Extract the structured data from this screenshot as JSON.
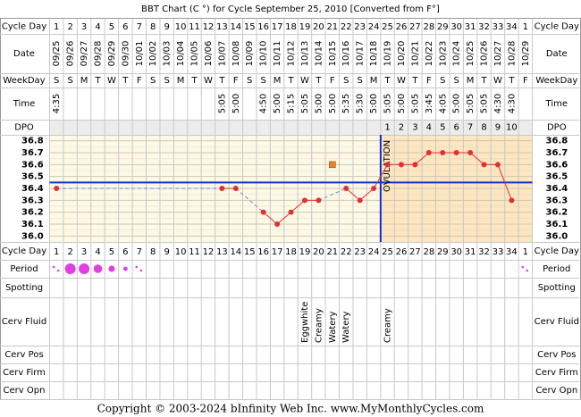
{
  "title": "BBT Chart (C °) for Cycle September 25, 2010  [Converted from F°]",
  "row_labels": {
    "cycle_day": "Cycle Day",
    "date": "Date",
    "weekday": "WeekDay",
    "time": "Time",
    "dpo": "DPO",
    "period": "Period",
    "spotting": "Spotting",
    "cerv_fluid": "Cerv Fluid",
    "cerv_pos": "Cerv Pos",
    "cerv_firm": "Cerv Firm",
    "cerv_opn": "Cerv Opn"
  },
  "cycle_days": [
    1,
    2,
    3,
    4,
    5,
    6,
    7,
    8,
    9,
    10,
    11,
    12,
    13,
    14,
    15,
    16,
    17,
    18,
    19,
    20,
    21,
    22,
    23,
    24,
    25,
    26,
    27,
    28,
    29,
    30,
    31,
    32,
    33,
    34,
    1
  ],
  "dates": [
    "09/25",
    "09/26",
    "09/27",
    "09/28",
    "09/29",
    "09/30",
    "10/01",
    "10/02",
    "10/03",
    "10/04",
    "10/05",
    "10/06",
    "10/07",
    "10/08",
    "10/09",
    "10/10",
    "10/11",
    "10/12",
    "10/13",
    "10/14",
    "10/15",
    "10/16",
    "10/17",
    "10/18",
    "10/19",
    "10/20",
    "10/21",
    "10/22",
    "10/23",
    "10/24",
    "10/25",
    "10/26",
    "10/27",
    "10/28",
    "10/29"
  ],
  "weekdays": [
    "S",
    "S",
    "M",
    "T",
    "W",
    "T",
    "F",
    "S",
    "S",
    "M",
    "T",
    "W",
    "T",
    "F",
    "S",
    "S",
    "M",
    "T",
    "W",
    "T",
    "F",
    "S",
    "S",
    "M",
    "T",
    "W",
    "T",
    "F",
    "S",
    "S",
    "M",
    "T",
    "W",
    "T",
    "F"
  ],
  "times": [
    "4:35",
    null,
    null,
    null,
    null,
    null,
    null,
    null,
    null,
    null,
    null,
    null,
    "5:05",
    "5:00",
    null,
    "4:50",
    "5:00",
    "5:15",
    "5:05",
    "5:00",
    "5:00",
    "5:35",
    "5:30",
    "5:00",
    "5:05",
    "5:00",
    "5:05",
    "3:45",
    "4:05",
    "5:00",
    "5:05",
    "5:05",
    "4:30",
    "4:30",
    null
  ],
  "dpo": [
    null,
    null,
    null,
    null,
    null,
    null,
    null,
    null,
    null,
    null,
    null,
    null,
    null,
    null,
    null,
    null,
    null,
    null,
    null,
    null,
    null,
    null,
    null,
    null,
    1,
    2,
    3,
    4,
    5,
    6,
    7,
    8,
    9,
    10,
    null
  ],
  "chart_data": {
    "type": "line",
    "values": [
      36.4,
      null,
      null,
      null,
      null,
      null,
      null,
      null,
      null,
      null,
      null,
      null,
      36.4,
      36.4,
      null,
      36.2,
      36.1,
      36.2,
      36.3,
      36.3,
      null,
      36.4,
      36.3,
      36.4,
      36.6,
      36.6,
      36.6,
      36.7,
      36.7,
      36.7,
      36.7,
      36.6,
      36.6,
      36.3,
      null
    ],
    "discarded_values": [
      null,
      null,
      null,
      null,
      null,
      null,
      null,
      null,
      null,
      null,
      null,
      null,
      null,
      null,
      null,
      null,
      null,
      null,
      null,
      null,
      36.6,
      null,
      null,
      null,
      null,
      null,
      null,
      null,
      null,
      null,
      null,
      null,
      null,
      null,
      null
    ],
    "color": "#e03030",
    "gap_color": "#7080e0",
    "discarded_color": "#f08020",
    "coverline": 36.45,
    "coverline_color": "#1030d0",
    "ovulation_day": 24,
    "ovulation_label": "OVULATION",
    "ylim": [
      35.95,
      36.85
    ],
    "yticks": [
      36.8,
      36.7,
      36.6,
      36.5,
      36.4,
      36.3,
      36.2,
      36.1,
      {
        "value": 36.0,
        "label": "36.0"
      }
    ]
  },
  "period": [
    1,
    5,
    5,
    4,
    3,
    2,
    1,
    null,
    null,
    null,
    null,
    null,
    null,
    null,
    null,
    null,
    null,
    null,
    null,
    null,
    null,
    null,
    null,
    null,
    null,
    null,
    null,
    null,
    null,
    null,
    null,
    null,
    null,
    null,
    1
  ],
  "cerv_fluid": [
    null,
    null,
    null,
    null,
    null,
    null,
    null,
    null,
    null,
    null,
    null,
    null,
    null,
    null,
    null,
    null,
    null,
    null,
    "Eggwhite",
    "Creamy",
    "Watery",
    "Watery",
    null,
    null,
    "Creamy",
    null,
    null,
    null,
    null,
    null,
    null,
    null,
    null,
    null,
    null
  ],
  "footer": "Copyright © 2003-2024 bInfinity Web Inc.    www.MyMonthlyCycles.com"
}
